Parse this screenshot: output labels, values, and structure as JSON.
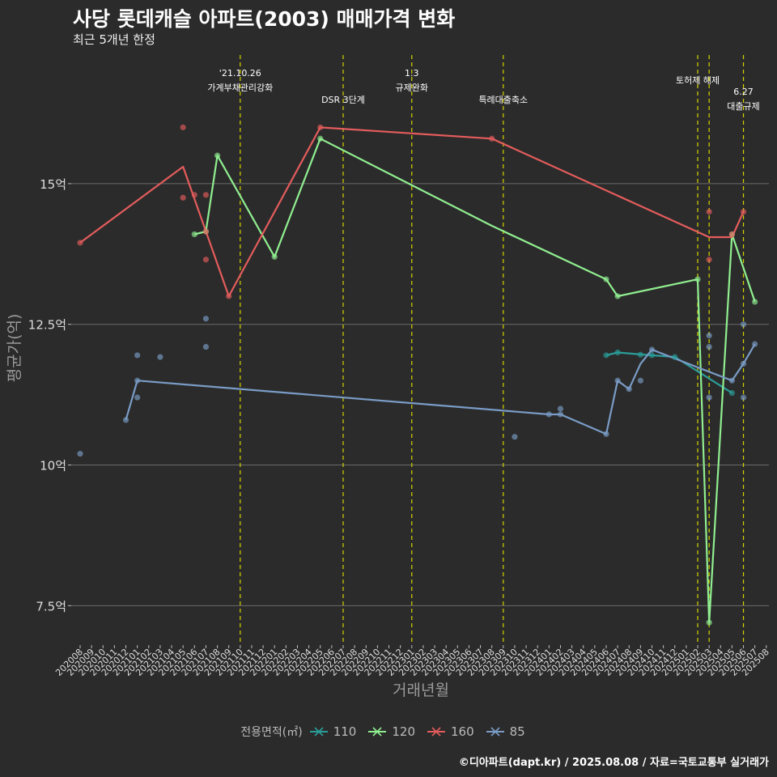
{
  "header": {
    "title": "사당 롯데캐슬 아파트(2003) 매매가격 변화",
    "subtitle": "최근 5개년 한정"
  },
  "caption": "©디아파트(dapt.kr) / 2025.08.08 / 자료=국토교통부 실거래가",
  "colors": {
    "background": "#2b2b2b",
    "grid": "#6a6a6a",
    "event_line": "#d4d400"
  },
  "chart_data": {
    "type": "line",
    "title": "사당 롯데캐슬 아파트(2003) 매매가격 변화",
    "xlabel": "거래년월",
    "ylabel": "평균가(억)",
    "ylim": [
      6.8,
      17.3
    ],
    "yticks": [
      7.5,
      10,
      12.5,
      15
    ],
    "ytick_labels": [
      "7.5억",
      "10억",
      "12.5억",
      "15억"
    ],
    "categories": [
      "202008",
      "202009",
      "202010",
      "202011",
      "202012",
      "202101",
      "202102",
      "202103",
      "202104",
      "202105",
      "202106",
      "202107",
      "202108",
      "202109",
      "202110",
      "202111",
      "202112",
      "202201",
      "202202",
      "202203",
      "202204",
      "202205",
      "202206",
      "202207",
      "202208",
      "202209",
      "202210",
      "202211",
      "202212",
      "202301",
      "202302",
      "202303",
      "202304",
      "202305",
      "202306",
      "202307",
      "202308",
      "202309",
      "202310",
      "202311",
      "202312",
      "202401",
      "202402",
      "202403",
      "202404",
      "202405",
      "202406",
      "202407",
      "202408",
      "202409",
      "202410",
      "202411",
      "202412",
      "202501",
      "202502",
      "202503",
      "202504",
      "202505",
      "202506",
      "202507",
      "202508"
    ],
    "legend_title": "전용면적(㎡)",
    "series": [
      {
        "name": "110",
        "color": "#2a9d9a",
        "line": [
          [
            "202406",
            11.95
          ],
          [
            "202407",
            12.0
          ],
          [
            "202410",
            11.95
          ],
          [
            "202412",
            11.92
          ],
          [
            "202505",
            11.28
          ]
        ],
        "points": [
          [
            "202406",
            11.95
          ],
          [
            "202407",
            12.0
          ],
          [
            "202409",
            11.96
          ],
          [
            "202410",
            11.95
          ],
          [
            "202412",
            11.92
          ],
          [
            "202505",
            11.28
          ]
        ]
      },
      {
        "name": "120",
        "color": "#90ee90",
        "line": [
          [
            "202106",
            14.1
          ],
          [
            "202107",
            14.15
          ],
          [
            "202108",
            15.5
          ],
          [
            "202201",
            13.7
          ],
          [
            "202205",
            15.8
          ],
          [
            "202308",
            14.25
          ],
          [
            "202406",
            13.3
          ],
          [
            "202407",
            13.0
          ],
          [
            "202502",
            13.3
          ],
          [
            "202503",
            7.2
          ],
          [
            "202505",
            14.1
          ],
          [
            "202507",
            12.9
          ]
        ],
        "points": [
          [
            "202106",
            14.1
          ],
          [
            "202107",
            14.15
          ],
          [
            "202108",
            15.5
          ],
          [
            "202201",
            13.7
          ],
          [
            "202205",
            15.8
          ],
          [
            "202406",
            13.3
          ],
          [
            "202407",
            13.0
          ],
          [
            "202502",
            13.3
          ],
          [
            "202503",
            7.2
          ],
          [
            "202505",
            14.1
          ],
          [
            "202507",
            12.9
          ]
        ]
      },
      {
        "name": "160",
        "color": "#e45c5c",
        "line": [
          [
            "202008",
            13.95
          ],
          [
            "202105",
            15.3
          ],
          [
            "202109",
            13.0
          ],
          [
            "202205",
            16.0
          ],
          [
            "202308",
            15.8
          ],
          [
            "202503",
            14.05
          ],
          [
            "202505",
            14.05
          ],
          [
            "202506",
            14.5
          ]
        ],
        "points": [
          [
            "202008",
            13.95
          ],
          [
            "202105",
            16.0
          ],
          [
            "202105",
            14.75
          ],
          [
            "202106",
            14.8
          ],
          [
            "202107",
            14.8
          ],
          [
            "202107",
            13.65
          ],
          [
            "202107",
            14.15
          ],
          [
            "202109",
            13.0
          ],
          [
            "202205",
            16.0
          ],
          [
            "202308",
            15.8
          ],
          [
            "202503",
            14.5
          ],
          [
            "202503",
            13.65
          ],
          [
            "202505",
            14.1
          ],
          [
            "202506",
            14.5
          ]
        ]
      },
      {
        "name": "85",
        "color": "#7a9cc6",
        "line": [
          [
            "202012",
            10.8
          ],
          [
            "202101",
            11.5
          ],
          [
            "202401",
            10.9
          ],
          [
            "202402",
            10.9
          ],
          [
            "202406",
            10.55
          ],
          [
            "202407",
            11.5
          ],
          [
            "202408",
            11.35
          ],
          [
            "202409",
            11.8
          ],
          [
            "202410",
            12.05
          ],
          [
            "202505",
            11.5
          ],
          [
            "202506",
            11.8
          ],
          [
            "202507",
            12.15
          ]
        ],
        "points": [
          [
            "202008",
            10.2
          ],
          [
            "202012",
            10.8
          ],
          [
            "202101",
            11.95
          ],
          [
            "202101",
            11.5
          ],
          [
            "202101",
            11.2
          ],
          [
            "202103",
            11.92
          ],
          [
            "202107",
            12.6
          ],
          [
            "202107",
            12.1
          ],
          [
            "202310",
            10.5
          ],
          [
            "202401",
            10.9
          ],
          [
            "202402",
            10.9
          ],
          [
            "202402",
            11.0
          ],
          [
            "202406",
            10.55
          ],
          [
            "202407",
            11.5
          ],
          [
            "202408",
            11.35
          ],
          [
            "202409",
            11.5
          ],
          [
            "202410",
            12.05
          ],
          [
            "202503",
            12.3
          ],
          [
            "202503",
            12.1
          ],
          [
            "202503",
            11.2
          ],
          [
            "202505",
            11.5
          ],
          [
            "202506",
            11.8
          ],
          [
            "202506",
            12.5
          ],
          [
            "202506",
            11.2
          ],
          [
            "202507",
            12.15
          ]
        ]
      }
    ],
    "events": [
      {
        "month": "202110",
        "line1": "'21.10.26",
        "line2": "가계부채관리강화"
      },
      {
        "month": "202207",
        "line1": "",
        "line2": "DSR 3단계"
      },
      {
        "month": "202301",
        "line1": "1.3",
        "line2": "규제완화"
      },
      {
        "month": "202309",
        "line1": "",
        "line2": "특례대출축소"
      },
      {
        "month": "202502",
        "line1": "토허제 해제",
        "line2": ""
      },
      {
        "month": "202503",
        "line1": "",
        "line2": ""
      },
      {
        "month": "202506",
        "line1": "6.27",
        "line2": "대출규제"
      }
    ]
  }
}
